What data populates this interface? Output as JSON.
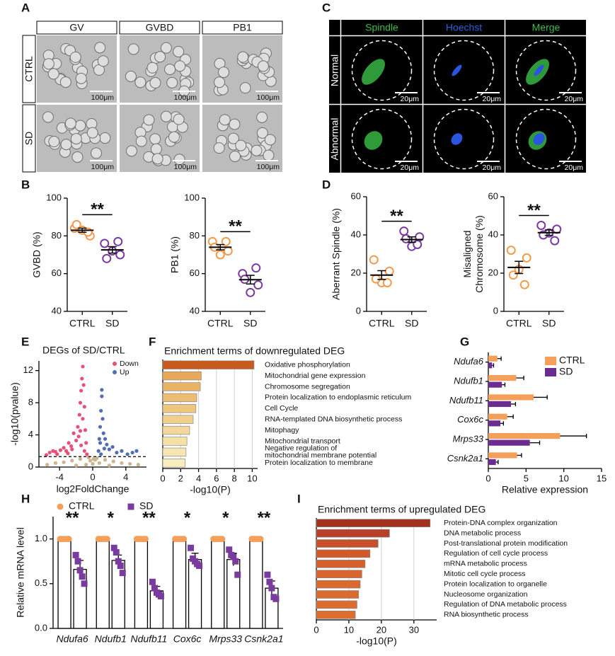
{
  "image_panels": [
    {
      "label": "A",
      "columns": [
        "GV",
        "GVBD",
        "PB1"
      ],
      "rows": [
        "CTRL",
        "SD"
      ],
      "scale_bar": "100μm"
    },
    {
      "label": "C",
      "columns": [
        "Spindle",
        "Hoechst",
        "Merge"
      ],
      "column_colors": [
        "#3dbb4a",
        "#2f5fd8",
        "#3dbb4a"
      ],
      "rows": [
        "Normal",
        "Abnormal"
      ],
      "scale_bar": "20μm"
    }
  ],
  "chart_data": [
    {
      "type": "dot",
      "panel": "B",
      "ylabel": "GVBD (%)",
      "categories": [
        "CTRL",
        "SD"
      ],
      "groups": [
        {
          "color": "#f29b4c",
          "values": [
            84,
            80,
            83,
            86,
            82
          ],
          "mean": 83,
          "error": 1.1
        },
        {
          "color": "#7a3b9e",
          "values": [
            76,
            70,
            72,
            68,
            77
          ],
          "mean": 72.6,
          "error": 1.7
        }
      ],
      "ylim": [
        40,
        100
      ],
      "yticks": [
        40,
        60,
        80,
        100
      ],
      "significance": "**"
    },
    {
      "type": "dot",
      "ylabel": "PB1 (%)",
      "categories": [
        "CTRL",
        "SD"
      ],
      "groups": [
        {
          "color": "#f29b4c",
          "values": [
            77,
            72,
            70,
            74,
            77
          ],
          "mean": 74,
          "error": 1.4
        },
        {
          "color": "#7a3b9e",
          "values": [
            60,
            54,
            50,
            57,
            63
          ],
          "mean": 56.8,
          "error": 2.3
        }
      ],
      "ylim": [
        40,
        100
      ],
      "yticks": [
        40,
        60,
        80,
        100
      ],
      "significance": "**"
    },
    {
      "type": "dot",
      "panel": "D",
      "ylabel": "Aberrant Spindle (%)",
      "categories": [
        "CTRL",
        "SD"
      ],
      "groups": [
        {
          "color": "#f29b4c",
          "values": [
            27,
            21,
            15,
            17,
            15
          ],
          "mean": 19,
          "error": 2.3
        },
        {
          "color": "#7a3b9e",
          "values": [
            42,
            39,
            34,
            38,
            35
          ],
          "mean": 37.6,
          "error": 1.4
        }
      ],
      "ylim": [
        0,
        60
      ],
      "yticks": [
        0,
        20,
        40,
        60
      ],
      "significance": "**"
    },
    {
      "type": "dot",
      "ylabel": [
        "Misaligned",
        "Chromosome (%)"
      ],
      "categories": [
        "CTRL",
        "SD"
      ],
      "groups": [
        {
          "color": "#f29b4c",
          "values": [
            32,
            28,
            22,
            19,
            14
          ],
          "mean": 23,
          "error": 3.2
        },
        {
          "color": "#7a3b9e",
          "values": [
            45,
            43,
            41,
            40,
            37
          ],
          "mean": 41.2,
          "error": 1.4
        }
      ],
      "ylim": [
        0,
        60
      ],
      "yticks": [
        0,
        20,
        40,
        60
      ],
      "significance": "**"
    },
    {
      "type": "scatter",
      "panel": "E",
      "title": "DEGs of SD/CTRL",
      "xlabel": "log2FoldChange",
      "ylabel": "-log10(pvalue)",
      "xlim": [
        -6.5,
        6.5
      ],
      "xticks": [
        -4,
        0,
        4
      ],
      "ylim": [
        0,
        13.2
      ],
      "yticks": [
        0,
        4,
        8,
        12
      ],
      "threshold": 1.3,
      "series": [
        {
          "color": "#cdb48c",
          "x": [
            -5.5,
            -4.5,
            -3.5,
            -2.5,
            -1.5,
            -0.5,
            0,
            0.5,
            1.5,
            2.5,
            3.5,
            4.5,
            5.5,
            -0.3,
            0.3,
            -0.8,
            0.8,
            -2,
            2,
            0.1
          ],
          "y": [
            0.3,
            0.5,
            0.6,
            0.8,
            1.0,
            1.2,
            0.4,
            1.1,
            0.9,
            0.7,
            0.5,
            0.4,
            0.3,
            0.8,
            0.9,
            0.3,
            0.5,
            0.2,
            0.2,
            1.0
          ]
        },
        {
          "name": "Down",
          "color": "#e8507a",
          "x": [
            -5.2,
            -4.8,
            -4.3,
            -3.9,
            -3.5,
            -3.2,
            -2.9,
            -2.6,
            -2.3,
            -2.0,
            -1.8,
            -1.6,
            -1.5,
            -1.4,
            -1.3,
            -1.2,
            -1.1,
            -1.0,
            -0.9,
            -1.7,
            -2.5,
            -3.0,
            -1.2,
            -1.5,
            -0.8,
            -1.0,
            -1.4,
            -5.6,
            -4.5,
            -0.7
          ],
          "y": [
            1.8,
            2.0,
            1.6,
            2.1,
            2.4,
            2.0,
            3.0,
            2.6,
            4.2,
            3.3,
            5.0,
            6.5,
            8.0,
            9.5,
            11.0,
            12.5,
            10.2,
            7.5,
            4.6,
            3.8,
            2.2,
            1.7,
            6.0,
            4.5,
            3.0,
            2.0,
            2.7,
            1.5,
            1.9,
            1.6
          ]
        },
        {
          "name": "Up",
          "color": "#4f6fb5",
          "x": [
            0.7,
            0.8,
            0.9,
            1.0,
            1.1,
            1.2,
            1.3,
            1.5,
            1.7,
            2.0,
            2.4,
            2.9,
            3.5,
            4.2,
            4.8,
            5.3,
            1.0,
            1.1,
            0.9,
            1.4
          ],
          "y": [
            2.0,
            3.5,
            5.0,
            7.0,
            8.8,
            6.0,
            4.2,
            3.5,
            2.8,
            2.2,
            2.5,
            1.8,
            2.0,
            1.6,
            1.8,
            2.0,
            1.6,
            9.6,
            3.0,
            2.3
          ]
        }
      ]
    },
    {
      "type": "hbar",
      "panel": "F",
      "title": "Enrichment terms of downregulated DEG",
      "xlabel": "-log10(P)",
      "xlim": [
        0,
        10.6
      ],
      "xticks": [
        0,
        2,
        4,
        6,
        8,
        10
      ],
      "grid": true,
      "categories": [
        "Oxidative phosphorylation",
        "Mitochondrial gene expression",
        "Chromosome segregation",
        "Protein localization to endoplasmic reticulum",
        "Cell Cycle",
        "RNA-templated DNA biosynthetic process",
        "Mitophagy",
        "Mitochondrial transport",
        [
          "Negative regulation of",
          "mitochondrial membrane potential"
        ],
        "Protein localization to membrane"
      ],
      "values": [
        10.2,
        4.3,
        4.2,
        3.8,
        3.7,
        3.4,
        3.0,
        2.7,
        2.6,
        2.5
      ],
      "colors": [
        "#c95a1e",
        "#e7a85a",
        "#e9b366",
        "#ecbd72",
        "#efc680",
        "#f1cf8c",
        "#f3d899",
        "#f5e0a6",
        "#f6e6b2",
        "#f8edbe"
      ]
    },
    {
      "type": "hbar",
      "panel": "G",
      "xlabel": "Relative expression",
      "xlim": [
        0,
        15
      ],
      "xticks": [
        0,
        5,
        10,
        15
      ],
      "categories": [
        "Ndufa6",
        "Ndufb1",
        "Ndufb11",
        "Cox6c",
        "Mrps33",
        "Csnk2a1"
      ],
      "series": [
        {
          "name": "CTRL",
          "color": "#f5a05a",
          "values": [
            1.2,
            3.7,
            6.0,
            2.5,
            9.5,
            3.8
          ],
          "errors": [
            0.5,
            1.0,
            1.8,
            0.8,
            3.5,
            0.6
          ]
        },
        {
          "name": "SD",
          "color": "#6a2c91",
          "values": [
            0.5,
            1.8,
            3.0,
            1.6,
            5.5,
            1.0
          ],
          "errors": [
            0.2,
            0.4,
            0.6,
            0.4,
            1.3,
            0.3
          ]
        }
      ]
    },
    {
      "type": "bar",
      "panel": "H",
      "ylabel": "Relative mRNA level",
      "ylim": [
        0,
        1.25
      ],
      "yticks": [
        {
          "value": 0,
          "label": "0.0"
        },
        {
          "value": 0.5,
          "label": "0.5"
        },
        {
          "value": 1,
          "label": "1.0"
        }
      ],
      "categories": [
        "Ndufa6",
        "Ndufb1",
        "Ndufb11",
        "Cox6c",
        "Mrps33",
        "Csnk2a1"
      ],
      "series": [
        {
          "name": "CTRL",
          "color": "#f5a05a",
          "marker": "circle",
          "values": [
            1,
            1,
            1,
            1,
            1,
            1
          ],
          "points": [
            [
              1,
              1,
              1,
              1,
              1
            ],
            [
              1,
              1,
              1,
              1,
              1
            ],
            [
              1,
              1,
              1,
              1,
              1
            ],
            [
              1,
              1,
              1,
              1,
              1
            ],
            [
              1,
              1,
              1,
              1,
              1
            ],
            [
              1,
              1,
              1,
              1,
              1
            ]
          ]
        },
        {
          "name": "SD",
          "color": "#7a3b9e",
          "marker": "square",
          "values": [
            0.66,
            0.76,
            0.42,
            0.77,
            0.77,
            0.45
          ],
          "errors": [
            0.1,
            0.06,
            0.05,
            0.07,
            0.07,
            0.08
          ],
          "points": [
            [
              0.82,
              0.75,
              0.65,
              0.58,
              0.5
            ],
            [
              0.9,
              0.85,
              0.75,
              0.7,
              0.62
            ],
            [
              0.52,
              0.45,
              0.4,
              0.38,
              0.36
            ],
            [
              0.9,
              0.78,
              0.75,
              0.72,
              0.7
            ],
            [
              0.88,
              0.82,
              0.8,
              0.75,
              0.6
            ],
            [
              0.6,
              0.52,
              0.45,
              0.35,
              0.33
            ]
          ]
        }
      ],
      "significance": [
        "**",
        "*",
        "**",
        "*",
        "*",
        "**"
      ]
    },
    {
      "type": "hbar",
      "panel": "I",
      "title": "Enrichment terms of upregulated DEG",
      "xlabel": "-log10(P)",
      "xlim": [
        0,
        37
      ],
      "xticks": [
        0,
        10,
        20,
        30
      ],
      "grid": true,
      "categories": [
        "Protein-DNA complex organization",
        "DNA metabolic process",
        "Post-translational protein modification",
        "Regulation of cell cycle process",
        "mRNA metabolic process",
        "Mitotic cell cycle process",
        "Protein localization to organelle",
        "Nucleosome organization",
        "Regulation of DNA metabolic process",
        "RNA biosynthetic process"
      ],
      "values": [
        35,
        22.5,
        19,
        16.5,
        15,
        14,
        13.5,
        13,
        12.5,
        12
      ],
      "colors": [
        "#a0321e",
        "#b8402a",
        "#c94f2a",
        "#d25a2a",
        "#d6602c",
        "#d9642c",
        "#db682d",
        "#dc6a2e",
        "#dd6c2e",
        "#de6e2f"
      ]
    }
  ]
}
